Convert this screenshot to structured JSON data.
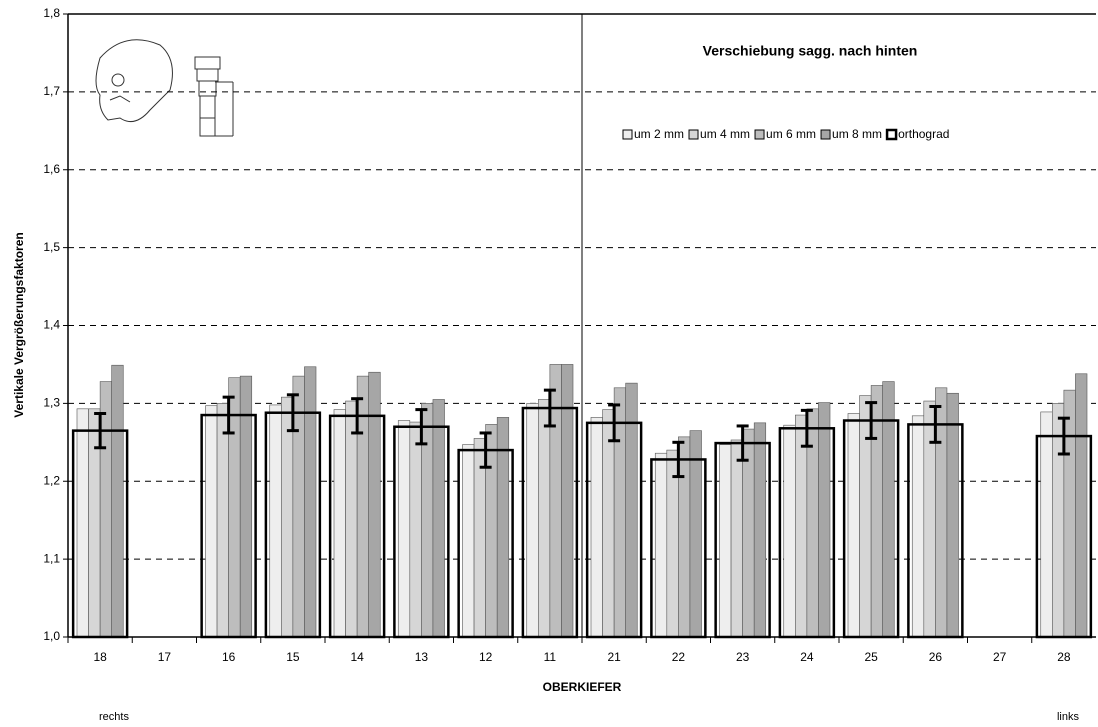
{
  "chart_data": {
    "type": "bar",
    "title": "Verschiebung sagg. nach hinten",
    "y_label": "Vertikale Vergrößerungsfaktoren",
    "x_label": "OBERKIEFER",
    "left_note": "rechts",
    "right_note": "links",
    "categories": [
      "18",
      "17",
      "16",
      "15",
      "14",
      "13",
      "12",
      "11",
      "21",
      "22",
      "23",
      "24",
      "25",
      "26",
      "27",
      "28"
    ],
    "series": [
      {
        "name": "um 2 mm",
        "color": "#eeeeee",
        "values": [
          1.293,
          null,
          1.297,
          1.298,
          1.292,
          1.278,
          1.247,
          1.3,
          1.282,
          1.236,
          1.247,
          1.272,
          1.287,
          1.284,
          null,
          1.289
        ]
      },
      {
        "name": "um 4 mm",
        "color": "#d6d6d6",
        "values": [
          1.293,
          null,
          1.3,
          1.308,
          1.303,
          1.276,
          1.255,
          1.305,
          1.292,
          1.24,
          1.253,
          1.285,
          1.31,
          1.303,
          null,
          1.3
        ]
      },
      {
        "name": "um 6 mm",
        "color": "#bdbdbd",
        "values": [
          1.328,
          null,
          1.333,
          1.335,
          1.335,
          1.3,
          1.273,
          1.35,
          1.32,
          1.257,
          1.267,
          1.293,
          1.323,
          1.32,
          null,
          1.317
        ]
      },
      {
        "name": "um 8 mm",
        "color": "#a6a6a6",
        "values": [
          1.349,
          null,
          1.335,
          1.347,
          1.34,
          1.305,
          1.282,
          1.35,
          1.326,
          1.265,
          1.275,
          1.301,
          1.328,
          1.313,
          null,
          1.338
        ]
      },
      {
        "name": "orthograd",
        "color": "#000000",
        "outline": true,
        "values": [
          1.265,
          null,
          1.285,
          1.288,
          1.284,
          1.27,
          1.24,
          1.294,
          1.275,
          1.228,
          1.249,
          1.268,
          1.278,
          1.273,
          null,
          1.258
        ],
        "errors": [
          0.022,
          null,
          0.023,
          0.023,
          0.022,
          0.022,
          0.022,
          0.023,
          0.023,
          0.022,
          0.022,
          0.023,
          0.023,
          0.023,
          null,
          0.023
        ]
      }
    ],
    "ylim": [
      1.0,
      1.8
    ],
    "yticks": [
      {
        "value": 1.0,
        "label": "1,0"
      },
      {
        "value": 1.1,
        "label": "1,1"
      },
      {
        "value": 1.2,
        "label": "1,2"
      },
      {
        "value": 1.3,
        "label": "1,3"
      },
      {
        "value": 1.4,
        "label": "1,4"
      },
      {
        "value": 1.5,
        "label": "1,5"
      },
      {
        "value": 1.6,
        "label": "1,6"
      },
      {
        "value": 1.7,
        "label": "1,7"
      },
      {
        "value": 1.8,
        "label": "1,8"
      }
    ],
    "grid": true,
    "legend": "top-right"
  }
}
